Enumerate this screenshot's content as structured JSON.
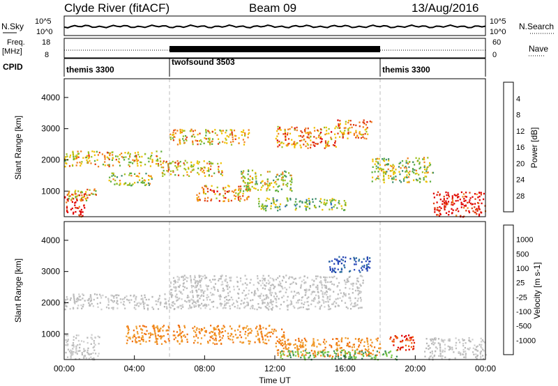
{
  "header": {
    "station": "Clyde River (fitACF)",
    "beam": "Beam 09",
    "date": "13/Aug/2016"
  },
  "strip": {
    "nsky_label": "N.Sky",
    "nsearch_label": "N.Search",
    "freq_label_1": "Freq.",
    "freq_label_2": "[MHz]",
    "nave_label": "Nave",
    "cpid_label": "CPID",
    "noise_left_ticks": [
      "10^5",
      "10^0"
    ],
    "noise_right_ticks": [
      "10^5",
      "10^0"
    ],
    "freq_ticks": [
      "18",
      "8"
    ],
    "nave_ticks": [
      "60",
      "0"
    ],
    "cpid_segments": [
      {
        "label": "themis 3300",
        "start_h": 0,
        "end_h": 6
      },
      {
        "label": "twofsound 3503",
        "start_h": 6,
        "end_h": 18
      },
      {
        "label": "themis 3300",
        "start_h": 18,
        "end_h": 24
      }
    ]
  },
  "chart_data": [
    {
      "type": "heatmap",
      "name": "power",
      "ylabel": "Slant Range [km]",
      "yticks": [
        "1000",
        "2000",
        "3000",
        "4000"
      ],
      "ylim": [
        180,
        4600
      ],
      "xlim": [
        0,
        24
      ],
      "colorbar": {
        "label": "Power [dB]",
        "ticks": [
          "4",
          "8",
          "12",
          "16",
          "20",
          "24",
          "28"
        ],
        "colors": [
          "#1f2fd6",
          "#2f6fbf",
          "#3f8f6f",
          "#5faf3f",
          "#a0c020",
          "#f0c000",
          "#f08020",
          "#e04010",
          "#e00000"
        ]
      },
      "echo_regions": [
        {
          "t0": 0.0,
          "t1": 5.5,
          "r0": 1800,
          "r1": 2300,
          "level": 5
        },
        {
          "t0": 0.0,
          "t1": 1.2,
          "r0": 200,
          "r1": 1000,
          "level": 8
        },
        {
          "t0": 0.2,
          "t1": 1.8,
          "r0": 700,
          "r1": 1100,
          "level": 5
        },
        {
          "t0": 2.5,
          "t1": 5.0,
          "r0": 1200,
          "r1": 1600,
          "level": 4
        },
        {
          "t0": 5.5,
          "t1": 9.0,
          "r0": 1500,
          "r1": 2000,
          "level": 5
        },
        {
          "t0": 6.0,
          "t1": 10.5,
          "r0": 2500,
          "r1": 3000,
          "level": 5
        },
        {
          "t0": 7.5,
          "t1": 10.5,
          "r0": 700,
          "r1": 1200,
          "level": 6
        },
        {
          "t0": 10.0,
          "t1": 13.0,
          "r0": 1000,
          "r1": 1700,
          "level": 4
        },
        {
          "t0": 12.0,
          "t1": 15.5,
          "r0": 2400,
          "r1": 3100,
          "level": 6
        },
        {
          "t0": 15.5,
          "t1": 17.5,
          "r0": 2700,
          "r1": 3300,
          "level": 6
        },
        {
          "t0": 11.0,
          "t1": 16.0,
          "r0": 400,
          "r1": 800,
          "level": 3
        },
        {
          "t0": 17.5,
          "t1": 21.0,
          "r0": 1300,
          "r1": 2100,
          "level": 4
        },
        {
          "t0": 21.0,
          "t1": 24.0,
          "r0": 200,
          "r1": 1000,
          "level": 8
        }
      ]
    },
    {
      "type": "heatmap",
      "name": "velocity",
      "ylabel": "Slant Range [km]",
      "xlabel": "Time UT",
      "yticks": [
        "1000",
        "2000",
        "3000",
        "4000"
      ],
      "xticks": [
        "00:00",
        "04:00",
        "08:00",
        "12:00",
        "16:00",
        "20:00",
        "00:00"
      ],
      "ylim": [
        180,
        4600
      ],
      "xlim": [
        0,
        24
      ],
      "colorbar": {
        "label": "Velocity [m s-1]",
        "ticks": [
          "1000",
          "500",
          "100",
          "25",
          "-25",
          "-100",
          "-500",
          "-1000"
        ],
        "colors": [
          "#1f3fb0",
          "#2f6f9f",
          "#3f8f5f",
          "#6fbf3f",
          "#c0c0c0",
          "#f0c040",
          "#f09020",
          "#f06010",
          "#e00000"
        ]
      },
      "echo_regions": [
        {
          "t0": 0.0,
          "t1": 6.0,
          "r0": 1800,
          "r1": 2300,
          "kind": "gray"
        },
        {
          "t0": 6.0,
          "t1": 17.0,
          "r0": 1800,
          "r1": 2900,
          "kind": "gray"
        },
        {
          "t0": 0.0,
          "t1": 2.0,
          "r0": 200,
          "r1": 1000,
          "kind": "gray"
        },
        {
          "t0": 3.5,
          "t1": 12.5,
          "r0": 700,
          "r1": 1300,
          "kind": "orange"
        },
        {
          "t0": 12.0,
          "t1": 18.0,
          "r0": 300,
          "r1": 900,
          "kind": "orange"
        },
        {
          "t0": 15.0,
          "t1": 17.5,
          "r0": 3000,
          "r1": 3500,
          "kind": "blue"
        },
        {
          "t0": 12.0,
          "t1": 19.0,
          "r0": 200,
          "r1": 500,
          "kind": "green"
        },
        {
          "t0": 18.5,
          "t1": 20.0,
          "r0": 500,
          "r1": 1000,
          "kind": "red"
        },
        {
          "t0": 20.5,
          "t1": 24.0,
          "r0": 200,
          "r1": 900,
          "kind": "gray"
        }
      ]
    }
  ]
}
